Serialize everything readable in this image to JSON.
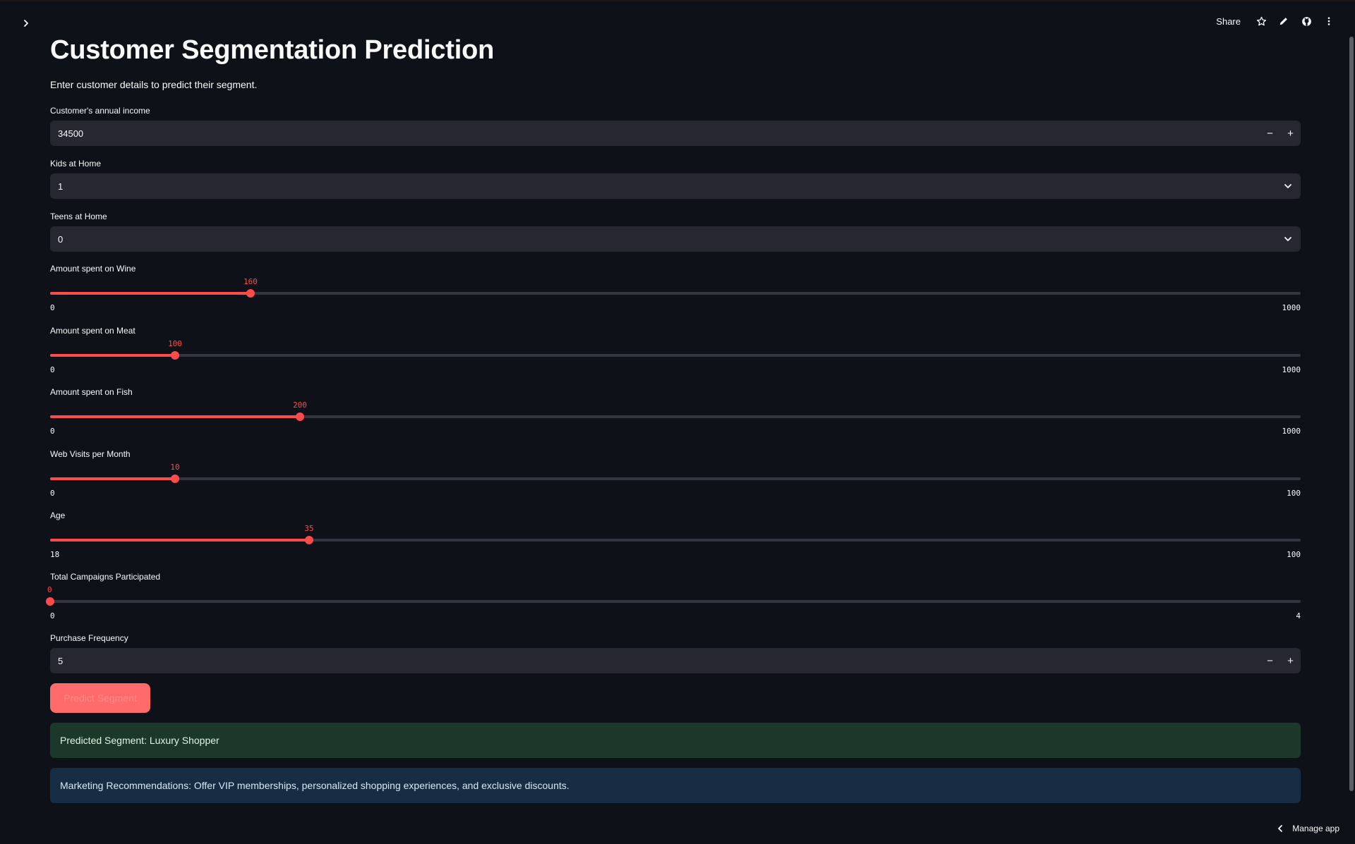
{
  "header": {
    "share_label": "Share",
    "icons": [
      "chevron-right-icon",
      "star-icon",
      "pencil-icon",
      "github-icon",
      "more-vertical-icon"
    ]
  },
  "main": {
    "title": "Customer Segmentation Prediction",
    "subtitle": "Enter customer details to predict their segment.",
    "income": {
      "label": "Customer's annual income",
      "value": "34500",
      "minus": "−",
      "plus": "+"
    },
    "kids": {
      "label": "Kids at Home",
      "value": "1"
    },
    "teens": {
      "label": "Teens at Home",
      "value": "0"
    },
    "sliders": [
      {
        "label": "Amount spent on Wine",
        "value": "160",
        "min": "0",
        "max": "1000",
        "fraction": 0.16
      },
      {
        "label": "Amount spent on Meat",
        "value": "100",
        "min": "0",
        "max": "1000",
        "fraction": 0.1
      },
      {
        "label": "Amount spent on Fish",
        "value": "200",
        "min": "0",
        "max": "1000",
        "fraction": 0.2
      },
      {
        "label": "Web Visits per Month",
        "value": "10",
        "min": "0",
        "max": "100",
        "fraction": 0.1
      },
      {
        "label": "Age",
        "value": "35",
        "min": "18",
        "max": "100",
        "fraction": 0.2073
      },
      {
        "label": "Total Campaigns Participated",
        "value": "0",
        "min": "0",
        "max": "4",
        "fraction": 0
      }
    ],
    "frequency": {
      "label": "Purchase Frequency",
      "value": "5",
      "minus": "−",
      "plus": "+"
    },
    "predict_button": "Predict Segment",
    "result": "Predicted Segment: Luxury Shopper",
    "recommendation": "Marketing Recommendations: Offer VIP memberships, personalized shopping experiences, and exclusive discounts."
  },
  "footer": {
    "manage_label": "Manage app"
  },
  "colors": {
    "background": "#0e1117",
    "accent": "#ff4b4b",
    "input_bg": "#262730",
    "success_bg": "#1c3829",
    "info_bg": "#172d43"
  }
}
